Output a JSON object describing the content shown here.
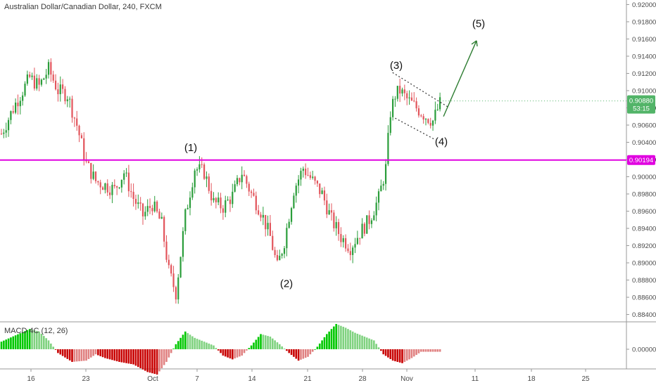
{
  "header": {
    "title": "Australian Dollar/Canadian Dollar, 240, FXCM"
  },
  "macd": {
    "title": "MACD 4C (12, 26)",
    "zero_label": "0.00000"
  },
  "price_axis": {
    "last_price": "0.90880",
    "countdown": "53:15",
    "level_label": "0.90194"
  },
  "colors": {
    "up_candle": "#2a9d3a",
    "down_candle": "#e2545b",
    "level_line": "#e000e0",
    "last_price_bg": "#52b468",
    "annotation_arrow": "#2e7d32",
    "macd_pos_strong": "#00c800",
    "macd_pos_weak": "#7fd27f",
    "macd_neg_strong": "#c80000",
    "macd_neg_weak": "#e08080"
  },
  "chart_data": {
    "type": "candlestick",
    "symbol": "Australian Dollar/Canadian Dollar",
    "timeframe": "240",
    "source": "FXCM",
    "ylim": [
      0.8838,
      0.9202
    ],
    "yticks": [
      "0.92000",
      "0.91800",
      "0.91600",
      "0.91400",
      "0.91200",
      "0.91000",
      "0.90800",
      "0.90600",
      "0.90400",
      "0.90200",
      "0.90000",
      "0.89800",
      "0.89600",
      "0.89400",
      "0.89200",
      "0.89000",
      "0.88800",
      "0.88600",
      "0.88400"
    ],
    "xticks": [
      "16",
      "23",
      "Oct",
      "7",
      "14",
      "21",
      "28",
      "Nov",
      "11",
      "18",
      "25"
    ],
    "horizontal_level": 0.90194,
    "last_price": 0.9088,
    "price_path": [
      [
        0,
        0.905
      ],
      [
        6,
        0.9085
      ],
      [
        12,
        0.9115
      ],
      [
        16,
        0.9105
      ],
      [
        20,
        0.9125
      ],
      [
        24,
        0.91
      ],
      [
        28,
        0.9095
      ],
      [
        32,
        0.906
      ],
      [
        36,
        0.9015
      ],
      [
        40,
        0.8995
      ],
      [
        44,
        0.899
      ],
      [
        48,
        0.8985
      ],
      [
        52,
        0.9005
      ],
      [
        56,
        0.8975
      ],
      [
        60,
        0.8955
      ],
      [
        64,
        0.8968
      ],
      [
        68,
        0.8945
      ],
      [
        71,
        0.889
      ],
      [
        74,
        0.8865
      ],
      [
        78,
        0.8955
      ],
      [
        82,
        0.901
      ],
      [
        86,
        0.9005
      ],
      [
        90,
        0.897
      ],
      [
        94,
        0.8965
      ],
      [
        98,
        0.8978
      ],
      [
        102,
        0.9005
      ],
      [
        106,
        0.898
      ],
      [
        110,
        0.896
      ],
      [
        114,
        0.893
      ],
      [
        117,
        0.8895
      ],
      [
        120,
        0.8925
      ],
      [
        124,
        0.8985
      ],
      [
        128,
        0.901
      ],
      [
        132,
        0.8995
      ],
      [
        136,
        0.898
      ],
      [
        140,
        0.895
      ],
      [
        144,
        0.893
      ],
      [
        148,
        0.8918
      ],
      [
        152,
        0.8935
      ],
      [
        156,
        0.895
      ],
      [
        160,
        0.8975
      ],
      [
        163,
        0.901
      ],
      [
        165,
        0.9075
      ],
      [
        167,
        0.9095
      ],
      [
        169,
        0.91
      ],
      [
        172,
        0.909
      ],
      [
        176,
        0.908
      ],
      [
        180,
        0.907
      ],
      [
        183,
        0.9065
      ],
      [
        186,
        0.9085
      ]
    ],
    "annotations": [
      {
        "label": "(1)",
        "value": 0.902
      },
      {
        "label": "(2)",
        "value": 0.8885
      },
      {
        "label": "(3)",
        "value": 0.9117
      },
      {
        "label": "(4)",
        "value": 0.9048
      },
      {
        "label": "(5)",
        "value": 0.9164
      }
    ],
    "macd_path": [
      [
        0,
        0.3
      ],
      [
        6,
        0.55
      ],
      [
        12,
        0.8
      ],
      [
        16,
        0.7
      ],
      [
        20,
        0.35
      ],
      [
        24,
        -0.15
      ],
      [
        30,
        -0.5
      ],
      [
        36,
        -0.45
      ],
      [
        40,
        -0.2
      ],
      [
        44,
        -0.35
      ],
      [
        50,
        -0.5
      ],
      [
        56,
        -0.6
      ],
      [
        62,
        -0.9
      ],
      [
        66,
        -1.0
      ],
      [
        70,
        -0.5
      ],
      [
        74,
        0.2
      ],
      [
        78,
        0.7
      ],
      [
        82,
        0.45
      ],
      [
        86,
        0.3
      ],
      [
        90,
        0.15
      ],
      [
        94,
        -0.25
      ],
      [
        98,
        -0.4
      ],
      [
        102,
        -0.25
      ],
      [
        106,
        0.15
      ],
      [
        110,
        0.6
      ],
      [
        114,
        0.5
      ],
      [
        118,
        0.2
      ],
      [
        122,
        -0.15
      ],
      [
        126,
        -0.45
      ],
      [
        130,
        -0.3
      ],
      [
        134,
        0.1
      ],
      [
        138,
        0.6
      ],
      [
        142,
        1.0
      ],
      [
        146,
        0.85
      ],
      [
        150,
        0.65
      ],
      [
        154,
        0.5
      ],
      [
        158,
        0.35
      ],
      [
        162,
        -0.2
      ],
      [
        166,
        -0.45
      ],
      [
        170,
        -0.55
      ],
      [
        174,
        -0.35
      ],
      [
        178,
        -0.1
      ]
    ]
  }
}
